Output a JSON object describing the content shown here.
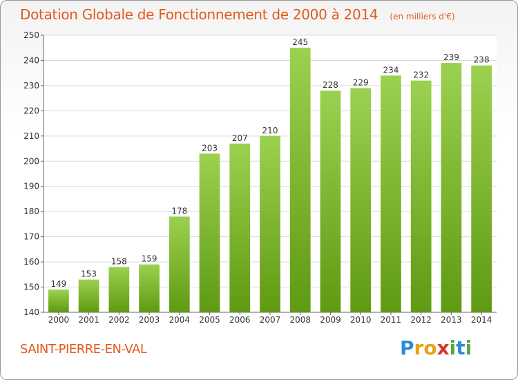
{
  "header": {
    "title": "Dotation Globale de Fonctionnement de 2000 à 2014",
    "subtitle": "(en milliers d'€)"
  },
  "footer": {
    "commune": "SAINT-PIERRE-EN-VAL",
    "brand": "Proxiti"
  },
  "colors": {
    "accent": "#e25a1c",
    "bar_top": "#9bd150",
    "bar_bottom": "#5f9a12",
    "grid": "#d9d9d9"
  },
  "chart_data": {
    "type": "bar",
    "categories": [
      "2000",
      "2001",
      "2002",
      "2003",
      "2004",
      "2005",
      "2006",
      "2007",
      "2008",
      "2009",
      "2010",
      "2011",
      "2012",
      "2013",
      "2014"
    ],
    "values": [
      149,
      153,
      158,
      159,
      178,
      203,
      207,
      210,
      245,
      228,
      229,
      234,
      232,
      239,
      238
    ],
    "ylim": [
      140,
      250
    ],
    "yticks": [
      140,
      150,
      160,
      170,
      180,
      190,
      200,
      210,
      220,
      230,
      240,
      250
    ],
    "grid": true,
    "title": "Dotation Globale de Fonctionnement de 2000 à 2014",
    "xlabel": "",
    "ylabel": ""
  }
}
